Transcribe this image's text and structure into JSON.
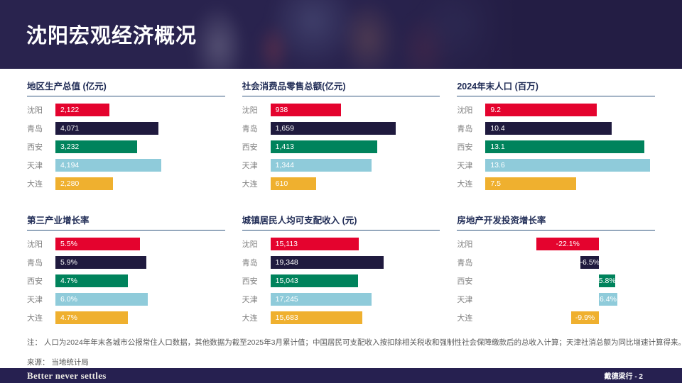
{
  "header": {
    "title": "沈阳宏观经济概况"
  },
  "cities": [
    "沈阳",
    "青岛",
    "西安",
    "天津",
    "大连"
  ],
  "colors": {
    "city_palette": [
      "#e4032e",
      "#1f1a3e",
      "#00835c",
      "#8fcbda",
      "#efb02f"
    ],
    "header_bg": "#29234e",
    "footer_bg": "#262050",
    "chart_title_text": "#1f2b55",
    "title_rule": "#31567e",
    "city_label_gray": "#808080",
    "note_gray": "#595959"
  },
  "chart_data": [
    {
      "type": "bar",
      "orientation": "horizontal",
      "title": "地区生产总值 (亿元)",
      "categories": [
        "沈阳",
        "青岛",
        "西安",
        "天津",
        "大连"
      ],
      "values": [
        2122,
        4071,
        3232,
        4194,
        2280
      ],
      "value_labels": [
        "2,122",
        "4,071",
        "3,232",
        "4,194",
        "2,280"
      ],
      "axis_max": 6700,
      "diverging": false
    },
    {
      "type": "bar",
      "orientation": "horizontal",
      "title": "社会消费品零售总额(亿元)",
      "categories": [
        "沈阳",
        "青岛",
        "西安",
        "天津",
        "大连"
      ],
      "values": [
        938,
        1659,
        1413,
        1344,
        610
      ],
      "value_labels": [
        "938",
        "1,659",
        "1,413",
        "1,344",
        "610"
      ],
      "axis_max": 2250,
      "diverging": false
    },
    {
      "type": "bar",
      "orientation": "horizontal",
      "title": "2024年末人口 (百万)",
      "categories": [
        "沈阳",
        "青岛",
        "西安",
        "天津",
        "大连"
      ],
      "values": [
        9.2,
        10.4,
        13.1,
        13.6,
        7.5
      ],
      "value_labels": [
        "9.2",
        "10.4",
        "13.1",
        "13.6",
        "7.5"
      ],
      "axis_max": 14,
      "diverging": false
    },
    {
      "type": "bar",
      "orientation": "horizontal",
      "title": "第三产业增长率",
      "categories": [
        "沈阳",
        "青岛",
        "西安",
        "天津",
        "大连"
      ],
      "values": [
        5.5,
        5.9,
        4.7,
        6.0,
        4.7
      ],
      "value_labels": [
        "5.5%",
        "5.9%",
        "4.7%",
        "6.0%",
        "4.7%"
      ],
      "axis_max": 11,
      "diverging": false
    },
    {
      "type": "bar",
      "orientation": "horizontal",
      "title": "城镇居民人均可支配收入 (元)",
      "categories": [
        "沈阳",
        "青岛",
        "西安",
        "天津",
        "大连"
      ],
      "values": [
        15113,
        19348,
        15043,
        17245,
        15683
      ],
      "value_labels": [
        "15,113",
        "19,348",
        "15,043",
        "17,245",
        "15,683"
      ],
      "axis_max": 29000,
      "diverging": false
    },
    {
      "type": "bar",
      "orientation": "horizontal",
      "title": "房地产开发投资增长率",
      "categories": [
        "沈阳",
        "青岛",
        "西安",
        "天津",
        "大连"
      ],
      "values": [
        -22.1,
        -6.5,
        5.8,
        6.4,
        -9.9
      ],
      "value_labels": [
        "-22.1%",
        "-6.5%",
        "5.8%",
        "6.4%",
        "-9.9%"
      ],
      "axis_max": 60,
      "diverging": true,
      "zero_fraction": 0.67
    }
  ],
  "note": {
    "prefix": "注：",
    "text": "人口为2024年年末各城市公报常住人口数据，其他数据为截至2025年3月累计值；中国居民可支配收入按扣除相关税收和强制性社会保障缴款后的总收入计算；天津社消总额为同比增速计算得来。"
  },
  "source": {
    "prefix": "来源：",
    "text": "当地统计局"
  },
  "footer": {
    "left": "Better never settles",
    "right": "戴德梁行 - 2"
  }
}
